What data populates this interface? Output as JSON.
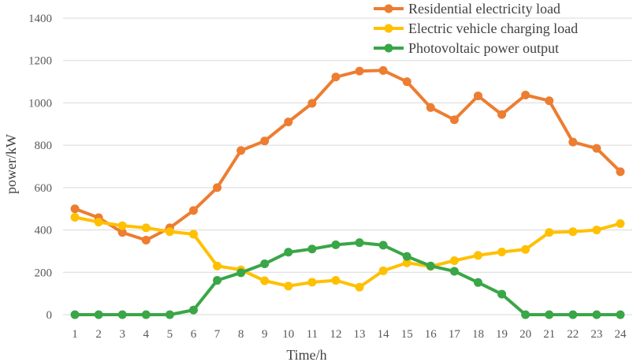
{
  "chart_data": {
    "type": "line",
    "title": "",
    "xlabel": "Time/h",
    "ylabel": "power/kW",
    "x": [
      1,
      2,
      3,
      4,
      5,
      6,
      7,
      8,
      9,
      10,
      11,
      12,
      13,
      14,
      15,
      16,
      17,
      18,
      19,
      20,
      21,
      22,
      23,
      24
    ],
    "x_tick_labels": [
      "1",
      "2",
      "3",
      "4",
      "5",
      "6",
      "7",
      "8",
      "9",
      "10",
      "11",
      "12",
      "13",
      "14",
      "15",
      "16",
      "17",
      "18",
      "19",
      "20",
      "21",
      "22",
      "23",
      "24"
    ],
    "ylim": [
      0,
      1400
    ],
    "y_ticks": [
      0,
      200,
      400,
      600,
      800,
      1000,
      1200,
      1400
    ],
    "y_tick_labels": [
      "0",
      "200",
      "400",
      "600",
      "800",
      "1000",
      "1200",
      "1400"
    ],
    "grid": true,
    "legend_position": "top-right",
    "series": [
      {
        "name": "Residential electricity load",
        "color": "#ed7d31",
        "values": [
          500,
          458,
          388,
          352,
          410,
          492,
          600,
          775,
          820,
          910,
          998,
          1122,
          1150,
          1153,
          1100,
          978,
          920,
          1033,
          945,
          1037,
          1010,
          815,
          785,
          675
        ]
      },
      {
        "name": "Electric vehicle charging load",
        "color": "#ffc000",
        "values": [
          460,
          437,
          420,
          410,
          392,
          380,
          230,
          212,
          160,
          135,
          153,
          162,
          130,
          207,
          245,
          228,
          255,
          280,
          296,
          308,
          388,
          392,
          400,
          430
        ]
      },
      {
        "name": "Photovoltaic power output",
        "color": "#3aa647",
        "values": [
          0,
          0,
          0,
          0,
          0,
          22,
          162,
          198,
          240,
          295,
          310,
          330,
          340,
          328,
          275,
          230,
          205,
          152,
          97,
          0,
          0,
          0,
          0,
          0
        ]
      }
    ]
  }
}
